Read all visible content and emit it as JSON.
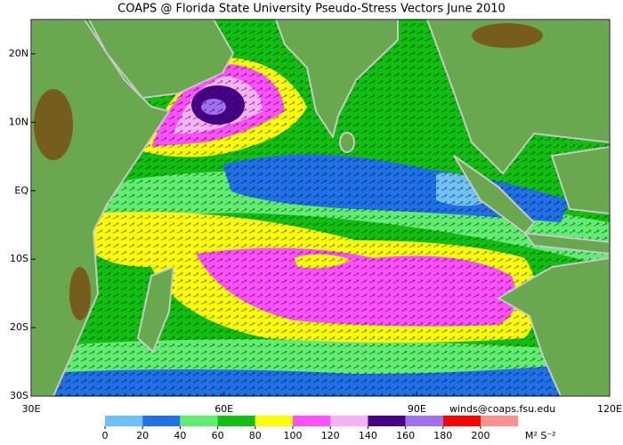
{
  "title": "COAPS @ Florida State University Pseudo-Stress Vectors June 2010",
  "map": {
    "lonlim": [
      30,
      120
    ],
    "latlim": [
      -30,
      25
    ],
    "lat_ticks": [
      {
        "value": 20,
        "label": "20N"
      },
      {
        "value": 10,
        "label": "10N"
      },
      {
        "value": 0,
        "label": "EQ"
      },
      {
        "value": -10,
        "label": "10S"
      },
      {
        "value": -20,
        "label": "20S"
      },
      {
        "value": -30,
        "label": "30S"
      }
    ],
    "lon_ticks": [
      {
        "value": 30,
        "label": "30E"
      },
      {
        "value": 60,
        "label": "60E"
      },
      {
        "value": 90,
        "label": "90E"
      },
      {
        "value": 120,
        "label": "120E"
      }
    ]
  },
  "credit": "winds@coaps.fsu.edu",
  "colorbar": {
    "ticks": [
      0,
      20,
      40,
      60,
      80,
      100,
      120,
      140,
      160,
      180,
      200
    ],
    "colors": [
      "#6ec0f8",
      "#2070e8",
      "#60ee70",
      "#10c010",
      "#ffff00",
      "#ff50ff",
      "#f8b0f8",
      "#480088",
      "#a070f0",
      "#ff0000",
      "#ff9090"
    ],
    "unit": "M² S⁻²"
  }
}
